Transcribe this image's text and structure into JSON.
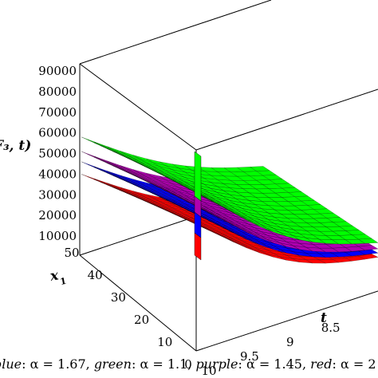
{
  "chart_data": {
    "type": "surface3d",
    "z_axis": {
      "label": "F₃, t)",
      "ticks": [
        10000,
        20000,
        30000,
        40000,
        50000,
        60000,
        70000,
        80000,
        90000
      ],
      "tick_labels": [
        "10000",
        "20000",
        "30000",
        "40000",
        "50000",
        "60000",
        "70000",
        "80000",
        "90000"
      ]
    },
    "x1_axis": {
      "label": "x",
      "subscript": "1",
      "ticks": [
        0,
        10,
        20,
        30,
        40,
        50
      ],
      "tick_labels": [
        "0",
        "10",
        "20",
        "30",
        "40",
        "50"
      ],
      "range": [
        0,
        50
      ]
    },
    "t_axis": {
      "label": "t",
      "ticks": [
        10,
        9.5,
        9,
        8.5
      ],
      "tick_labels": [
        "10",
        "9.5",
        "9",
        "8.5"
      ],
      "range": [
        8,
        10
      ]
    },
    "series": [
      {
        "name": "green",
        "alpha": "1.1",
        "color": "#00ff00",
        "z_back_corner": 58000,
        "z_front_corner": 33000,
        "z_right_end": 14500
      },
      {
        "name": "purple",
        "alpha": "1.45",
        "color": "#b000b0",
        "z_back_corner": 51000,
        "z_front_corner": 26000,
        "z_right_end": 11500
      },
      {
        "name": "blue",
        "alpha": "1.67",
        "color": "#0000ff",
        "z_back_corner": 46000,
        "z_front_corner": 22000,
        "z_right_end": 9500
      },
      {
        "name": "red",
        "alpha": "2",
        "color": "#ff0000",
        "z_back_corner": 40000,
        "z_front_corner": 17000,
        "z_right_end": 7500
      }
    ],
    "legend": {
      "items": [
        {
          "color_name": "blue",
          "sep": ": ",
          "text": "α = 1.67, "
        },
        {
          "color_name": "green",
          "sep": ": ",
          "text": "α = 1.1, "
        },
        {
          "color_name": "purple",
          "sep": ": ",
          "text": "α = 1.45, "
        },
        {
          "color_name": "red",
          "sep": ": ",
          "text": "α = 2"
        }
      ]
    },
    "grid": false,
    "box": true
  }
}
